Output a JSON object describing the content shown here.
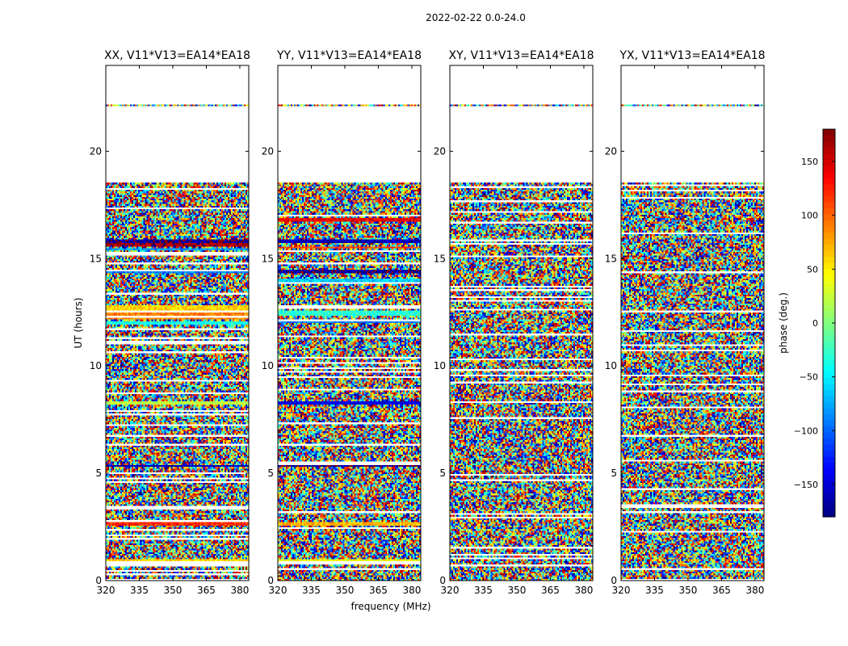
{
  "figure": {
    "suptitle": "2022-02-22 0.0-24.0"
  },
  "chart_data": {
    "type": "heatmap",
    "xlabel": "frequency (MHz)",
    "ylabel": "UT (hours)",
    "xlim": [
      320,
      384
    ],
    "ylim": [
      0,
      24
    ],
    "xticks": [
      320,
      335,
      350,
      365,
      380
    ],
    "yticks": [
      0,
      5,
      10,
      15,
      20
    ],
    "colormap": "jet",
    "colorbar": {
      "label": "phase (deg.)",
      "range": [
        -180,
        180
      ],
      "ticks": [
        -150,
        -100,
        -50,
        0,
        50,
        100,
        150
      ],
      "tick_labels": [
        "−150",
        "−100",
        "−50",
        "0",
        "50",
        "100",
        "150"
      ]
    },
    "flagged_ut_ranges": [
      [
        22.2,
        24.0
      ],
      [
        18.5,
        22.1
      ]
    ],
    "panels": [
      {
        "title": "XX, V11*V13=EA14*EA18",
        "coherent_bands": [
          {
            "ut": [
              15.75,
              15.9
            ],
            "phase": -170
          },
          {
            "ut": [
              15.55,
              15.7
            ],
            "phase": 165
          },
          {
            "ut": [
              15.4,
              15.5
            ],
            "phase": -80
          },
          {
            "ut": [
              14.3,
              14.5
            ],
            "phase": -90
          },
          {
            "ut": [
              12.6,
              12.8
            ],
            "phase": 60
          },
          {
            "ut": [
              12.2,
              12.5
            ],
            "phase": 90
          },
          {
            "ut": [
              11.9,
              12.1
            ],
            "phase": -40
          },
          {
            "ut": [
              8.2,
              8.35
            ],
            "phase": 20
          },
          {
            "ut": [
              5.3,
              5.4
            ],
            "phase": -160
          },
          {
            "ut": [
              2.55,
              2.7
            ],
            "phase": 120
          },
          {
            "ut": [
              0.85,
              1.0
            ],
            "phase": 60
          }
        ]
      },
      {
        "title": "YY, V11*V13=EA14*EA18",
        "coherent_bands": [
          {
            "ut": [
              16.75,
              16.9
            ],
            "phase": 140
          },
          {
            "ut": [
              15.7,
              15.85
            ],
            "phase": -160
          },
          {
            "ut": [
              15.45,
              15.6
            ],
            "phase": 110
          },
          {
            "ut": [
              14.3,
              14.5
            ],
            "phase": -170
          },
          {
            "ut": [
              13.9,
              14.05
            ],
            "phase": -60
          },
          {
            "ut": [
              12.3,
              12.6
            ],
            "phase": -30
          },
          {
            "ut": [
              12.0,
              12.2
            ],
            "phase": -90
          },
          {
            "ut": [
              8.2,
              8.35
            ],
            "phase": -140
          },
          {
            "ut": [
              5.3,
              5.4
            ],
            "phase": -170
          },
          {
            "ut": [
              2.55,
              2.7
            ],
            "phase": 70
          },
          {
            "ut": [
              0.85,
              1.0
            ],
            "phase": 40
          }
        ]
      },
      {
        "title": "XY, V11*V13=EA14*EA18",
        "coherent_bands": []
      },
      {
        "title": "YX, V11*V13=EA14*EA18",
        "coherent_bands": []
      }
    ]
  }
}
